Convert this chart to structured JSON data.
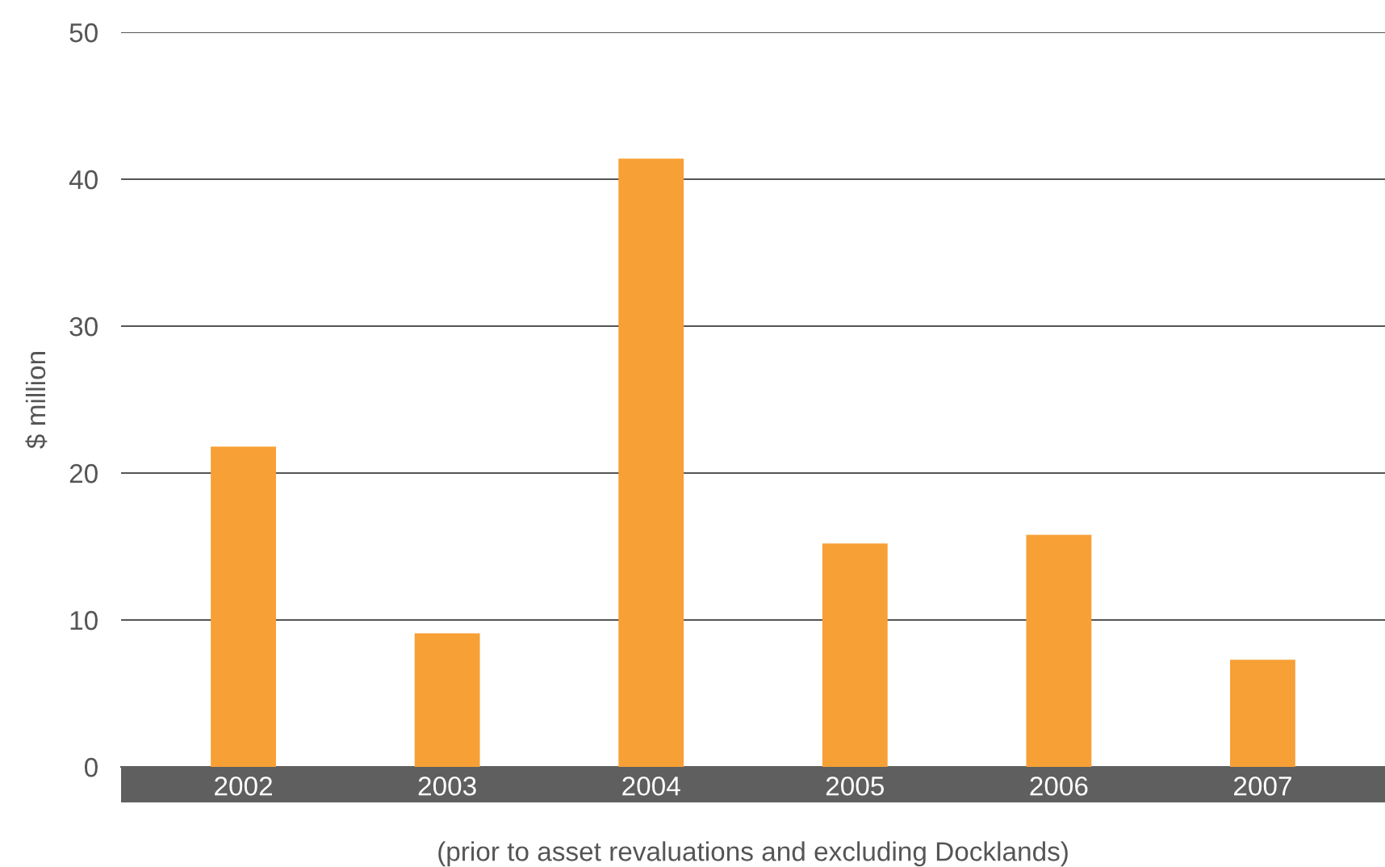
{
  "chart_data": {
    "type": "bar",
    "ylabel": "$ million",
    "xlabel": "(prior to asset revaluations and excluding Docklands)",
    "categories": [
      "2002",
      "2003",
      "2004",
      "2005",
      "2006",
      "2007"
    ],
    "values": [
      21.8,
      9.1,
      41.4,
      15.2,
      15.8,
      7.3
    ],
    "color": "#f7a035",
    "ylim": [
      0,
      50
    ],
    "yticks": [
      0,
      10,
      20,
      30,
      40,
      50
    ],
    "grid": "y",
    "legend": false
  }
}
